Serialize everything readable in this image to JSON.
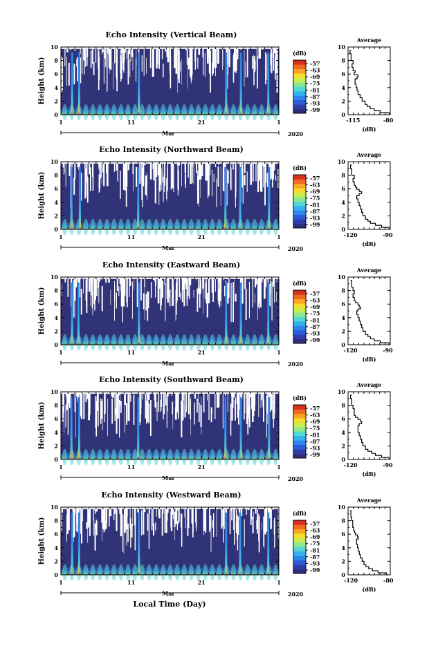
{
  "footer": {
    "xlabel": "Local Time (Day)"
  },
  "colorbar": {
    "unit": "(dB)",
    "tick_labels": [
      "-57",
      "-63",
      "-69",
      "-75",
      "-81",
      "-87",
      "-93",
      "-99"
    ],
    "colors": [
      "#2b2f7d",
      "#2f3da9",
      "#2d5cd8",
      "#2f86ea",
      "#35b1ec",
      "#56d6d6",
      "#8ce88f",
      "#c9ee52",
      "#f5dc2e",
      "#f9a825",
      "#f26a1f",
      "#d7301f"
    ]
  },
  "chart_data": [
    {
      "type": "heatmap",
      "title": "Echo Intensity (Vertical Beam)",
      "ylabel": "Height (km)",
      "ylim": [
        0,
        10
      ],
      "yticks": [
        "0",
        "2",
        "4",
        "6",
        "8",
        "10"
      ],
      "xticks": [
        "1",
        "11",
        "21",
        "1"
      ],
      "xlabel": "Mar",
      "year": "2020",
      "background_color": "#313378",
      "spike_days": [
        2.6,
        3.6,
        12.1,
        24.5,
        26.6,
        30.5
      ],
      "profile": {
        "title": "Average",
        "xlabel": "(dB)",
        "xticks": [
          "-115",
          "-80"
        ],
        "xlim": [
          -120,
          -78
        ],
        "heights": [
          0,
          0.3,
          0.6,
          0.9,
          1.2,
          1.5,
          2.0,
          2.5,
          3.0,
          3.5,
          4.0,
          4.5,
          5.0,
          5.3,
          5.6,
          5.9,
          6.2,
          6.5,
          7.0,
          7.5,
          8.0,
          8.5,
          9.0,
          9.5
        ],
        "values": [
          -79,
          -88,
          -94,
          -98,
          -101,
          -103,
          -106,
          -108,
          -110,
          -111,
          -112,
          -113,
          -113,
          -111,
          -110,
          -114,
          -113,
          -115,
          -116,
          -115,
          -117,
          -117,
          -118,
          -117
        ]
      }
    },
    {
      "type": "heatmap",
      "title": "Echo Intensity (Northward Beam)",
      "ylabel": "Height (km)",
      "ylim": [
        0,
        10
      ],
      "yticks": [
        "0",
        "2",
        "4",
        "6",
        "8",
        "10"
      ],
      "xticks": [
        "1",
        "11",
        "21",
        "1"
      ],
      "xlabel": "Mar",
      "year": "2020",
      "background_color": "#313378",
      "spike_days": [
        2.5,
        3.7,
        12.0,
        24.4,
        26.5,
        30.6
      ],
      "profile": {
        "title": "Average",
        "xlabel": "(dB)",
        "xticks": [
          "-120",
          "-90"
        ],
        "xlim": [
          -122,
          -88
        ],
        "heights": [
          0,
          0.3,
          0.6,
          0.9,
          1.2,
          1.5,
          2.0,
          2.5,
          3.0,
          3.5,
          4.0,
          4.5,
          5.0,
          5.3,
          5.6,
          5.9,
          6.2,
          6.5,
          7.0,
          7.5,
          8.0,
          8.5,
          9.0,
          9.5
        ],
        "values": [
          -89,
          -95,
          -100,
          -104,
          -106,
          -108,
          -110,
          -111,
          -112,
          -113,
          -114,
          -115,
          -113,
          -111,
          -113,
          -115,
          -116,
          -117,
          -118,
          -117,
          -119,
          -119,
          -120,
          -119
        ]
      }
    },
    {
      "type": "heatmap",
      "title": "Echo Intensity (Eastward Beam)",
      "ylabel": "Height (km)",
      "ylim": [
        0,
        10
      ],
      "yticks": [
        "0",
        "2",
        "4",
        "6",
        "8",
        "10"
      ],
      "xticks": [
        "1",
        "11",
        "21",
        "1"
      ],
      "xlabel": "Mar",
      "year": "2020",
      "background_color": "#313378",
      "spike_days": [
        2.6,
        3.5,
        12.1,
        24.5,
        26.6,
        30.5
      ],
      "profile": {
        "title": "Average",
        "xlabel": "(dB)",
        "xticks": [
          "-120",
          "-90"
        ],
        "xlim": [
          -122,
          -88
        ],
        "heights": [
          0,
          0.3,
          0.6,
          0.9,
          1.2,
          1.5,
          2.0,
          2.5,
          3.0,
          3.5,
          4.0,
          4.5,
          5.0,
          5.3,
          5.6,
          5.9,
          6.2,
          6.5,
          7.0,
          7.5,
          8.0,
          8.5,
          9.0,
          9.5
        ],
        "values": [
          -89,
          -96,
          -101,
          -104,
          -106,
          -108,
          -110,
          -111,
          -112,
          -113,
          -114,
          -115,
          -114,
          -112,
          -113,
          -114,
          -116,
          -117,
          -118,
          -117,
          -118,
          -119,
          -119,
          -120
        ]
      }
    },
    {
      "type": "heatmap",
      "title": "Echo Intensity (Southward Beam)",
      "ylabel": "Height (km)",
      "ylim": [
        0,
        10
      ],
      "yticks": [
        "0",
        "2",
        "4",
        "6",
        "8",
        "10"
      ],
      "xticks": [
        "1",
        "11",
        "21",
        "1"
      ],
      "xlabel": "Mar",
      "year": "2020",
      "background_color": "#313378",
      "spike_days": [
        2.5,
        3.6,
        12.0,
        24.4,
        26.6,
        30.6
      ],
      "profile": {
        "title": "Average",
        "xlabel": "(dB)",
        "xticks": [
          "-120",
          "-90"
        ],
        "xlim": [
          -122,
          -88
        ],
        "heights": [
          0,
          0.3,
          0.6,
          0.9,
          1.2,
          1.5,
          2.0,
          2.5,
          3.0,
          3.5,
          4.0,
          4.5,
          5.0,
          5.3,
          5.6,
          5.9,
          6.2,
          6.5,
          7.0,
          7.5,
          8.0,
          8.5,
          9.0,
          9.5
        ],
        "values": [
          -89,
          -95,
          -100,
          -103,
          -106,
          -108,
          -110,
          -111,
          -112,
          -113,
          -114,
          -114,
          -113,
          -111,
          -112,
          -114,
          -116,
          -117,
          -117,
          -118,
          -119,
          -119,
          -120,
          -119
        ]
      }
    },
    {
      "type": "heatmap",
      "title": "Echo Intensity (Westward Beam)",
      "ylabel": "Height (km)",
      "ylim": [
        0,
        10
      ],
      "yticks": [
        "0",
        "2",
        "4",
        "6",
        "8",
        "10"
      ],
      "xticks": [
        "1",
        "11",
        "21",
        "1"
      ],
      "xlabel": "Mar",
      "year": "2020",
      "background_color": "#313378",
      "spike_days": [
        2.6,
        3.6,
        12.1,
        24.5,
        26.5,
        30.5
      ],
      "profile": {
        "title": "Average",
        "xlabel": "(dB)",
        "xticks": [
          "-120",
          "-80"
        ],
        "xlim": [
          -123,
          -78
        ],
        "heights": [
          0,
          0.3,
          0.6,
          0.9,
          1.2,
          1.5,
          2.0,
          2.5,
          3.0,
          3.5,
          4.0,
          4.5,
          5.0,
          5.3,
          5.6,
          5.9,
          6.2,
          6.5,
          7.0,
          7.5,
          8.0,
          8.5,
          9.0,
          9.5
        ],
        "values": [
          -82,
          -91,
          -97,
          -101,
          -104,
          -106,
          -108,
          -110,
          -111,
          -112,
          -113,
          -114,
          -114,
          -112,
          -113,
          -115,
          -116,
          -117,
          -118,
          -118,
          -119,
          -120,
          -120,
          -121
        ]
      }
    }
  ]
}
